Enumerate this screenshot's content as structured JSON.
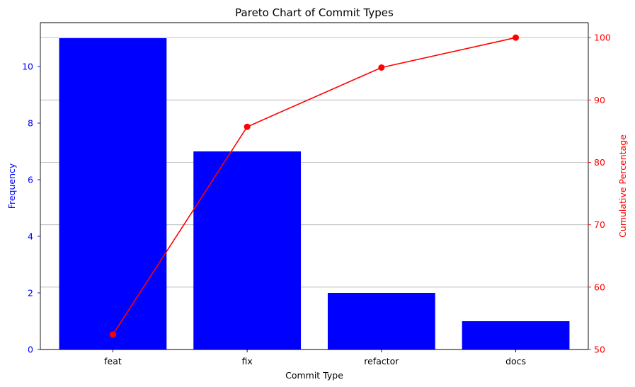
{
  "chart_data": {
    "type": "bar",
    "title": "Pareto Chart of Commit Types",
    "xlabel": "Commit Type",
    "ylabel": "Frequency",
    "y2label": "Cumulative Percentage",
    "categories": [
      "feat",
      "fix",
      "refactor",
      "docs"
    ],
    "series": [
      {
        "type": "bar",
        "axis": "left",
        "values": [
          11,
          7,
          2,
          1
        ],
        "color": "#0000ff"
      },
      {
        "type": "line",
        "axis": "right",
        "values": [
          52.4,
          85.7,
          95.2,
          100.0
        ],
        "color": "#ff0000",
        "marker": "circle"
      }
    ],
    "ylim": [
      0,
      11.55
    ],
    "y2lim": [
      50,
      102.4
    ],
    "yticks": [
      0,
      2,
      4,
      6,
      8,
      10
    ],
    "y2ticks": [
      50,
      60,
      70,
      80,
      90,
      100
    ],
    "grid": "horizontal, aligned to right axis",
    "left_axis_color": "#0000ff",
    "right_axis_color": "#ff0000"
  }
}
